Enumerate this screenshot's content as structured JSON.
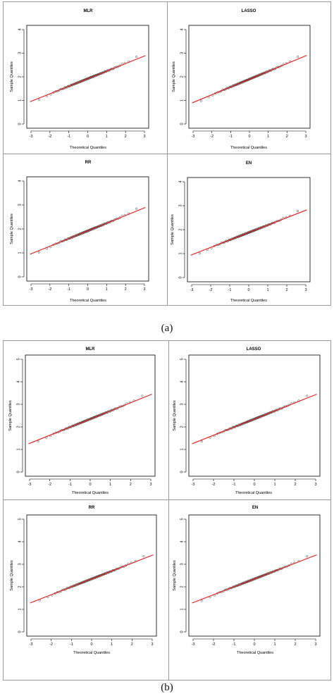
{
  "figure": {
    "label_a": "(a)",
    "label_b": "(b)"
  },
  "colors": {
    "reference_line": "#e41a1c",
    "points": "#333333",
    "axis": "#000000",
    "frame": "#9a9a9a"
  },
  "chart_data": [
    {
      "type": "scatter",
      "group": "a",
      "title": "MLR",
      "xlabel": "Theoretical Quantiles",
      "ylabel": "Sample Quantiles",
      "xlim": [
        -3,
        3
      ],
      "ylim": [
        0,
        4
      ],
      "xticks": [
        "-3",
        "-2",
        "-1",
        "0",
        "1",
        "2",
        "3"
      ],
      "yticks": [
        "0",
        "1",
        "2",
        "3",
        "4"
      ],
      "line": {
        "intercept": 1.92,
        "slope": 0.32,
        "color": "#e41a1c"
      },
      "points": {
        "count": 100,
        "min": 0.9,
        "max": 3.0
      }
    },
    {
      "type": "scatter",
      "group": "a",
      "title": "LASSO",
      "xlabel": "Theoretical Quantiles",
      "ylabel": "Sample Quantiles",
      "xlim": [
        -3,
        3
      ],
      "ylim": [
        0,
        4
      ],
      "xticks": [
        "-3",
        "-2",
        "-1",
        "0",
        "1",
        "2",
        "3"
      ],
      "yticks": [
        "0",
        "1",
        "2",
        "3",
        "4"
      ],
      "line": {
        "intercept": 1.9,
        "slope": 0.33,
        "color": "#e41a1c"
      },
      "points": {
        "count": 100,
        "min": 0.9,
        "max": 2.95
      }
    },
    {
      "type": "scatter",
      "group": "a",
      "title": "RR",
      "xlabel": "Theoretical Quantiles",
      "ylabel": "Sample Quantiles",
      "xlim": [
        -3,
        3
      ],
      "ylim": [
        0,
        4
      ],
      "xticks": [
        "-3",
        "-2",
        "-1",
        "0",
        "1",
        "2",
        "3"
      ],
      "yticks": [
        "0",
        "1",
        "2",
        "3",
        "4"
      ],
      "line": {
        "intercept": 1.92,
        "slope": 0.32,
        "color": "#e41a1c"
      },
      "points": {
        "count": 100,
        "min": 0.9,
        "max": 3.0
      }
    },
    {
      "type": "scatter",
      "group": "a",
      "title": "EN",
      "xlabel": "Theoretical Quantiles",
      "ylabel": "Sample Quantiles",
      "xlim": [
        -3,
        3
      ],
      "ylim": [
        0,
        4
      ],
      "xticks": [
        "-3",
        "-2",
        "-1",
        "0",
        "1",
        "2",
        "3"
      ],
      "yticks": [
        "0",
        "1",
        "2",
        "3",
        "4"
      ],
      "line": {
        "intercept": 1.88,
        "slope": 0.31,
        "color": "#e41a1c"
      },
      "points": {
        "count": 100,
        "min": 0.9,
        "max": 2.95
      }
    },
    {
      "type": "scatter",
      "group": "b",
      "title": "MLR",
      "xlabel": "Theoretical Quantiles",
      "ylabel": "Sample Quantiles",
      "xlim": [
        -3,
        3
      ],
      "ylim": [
        0,
        5
      ],
      "xticks": [
        "-3",
        "-2",
        "-1",
        "0",
        "1",
        "2",
        "3"
      ],
      "yticks": [
        "0",
        "1",
        "2",
        "3",
        "4",
        "5"
      ],
      "line": {
        "intercept": 2.35,
        "slope": 0.36,
        "color": "#e41a1c"
      },
      "points": {
        "count": 100,
        "min": 1.3,
        "max": 3.4
      }
    },
    {
      "type": "scatter",
      "group": "b",
      "title": "LASSO",
      "xlabel": "Theoretical Quantiles",
      "ylabel": "Sample Quantiles",
      "xlim": [
        -3,
        3
      ],
      "ylim": [
        0,
        5
      ],
      "xticks": [
        "-3",
        "-2",
        "-1",
        "0",
        "1",
        "2",
        "3"
      ],
      "yticks": [
        "0",
        "1",
        "2",
        "3",
        "4",
        "5"
      ],
      "line": {
        "intercept": 2.35,
        "slope": 0.36,
        "color": "#e41a1c"
      },
      "points": {
        "count": 100,
        "min": 1.35,
        "max": 3.4
      }
    },
    {
      "type": "scatter",
      "group": "b",
      "title": "RR",
      "xlabel": "Theoretical Quantiles",
      "ylabel": "Sample Quantiles",
      "xlim": [
        -3,
        3
      ],
      "ylim": [
        0,
        5
      ],
      "xticks": [
        "-3",
        "-2",
        "-1",
        "0",
        "1",
        "2",
        "3"
      ],
      "yticks": [
        "0",
        "1",
        "2",
        "3",
        "4",
        "5"
      ],
      "line": {
        "intercept": 2.35,
        "slope": 0.35,
        "color": "#e41a1c"
      },
      "points": {
        "count": 100,
        "min": 1.4,
        "max": 3.4
      }
    },
    {
      "type": "scatter",
      "group": "b",
      "title": "EN",
      "xlabel": "Theoretical Quantiles",
      "ylabel": "Sample Quantiles",
      "xlim": [
        -3,
        3
      ],
      "ylim": [
        0,
        5
      ],
      "xticks": [
        "-3",
        "-2",
        "-1",
        "0",
        "1",
        "2",
        "3"
      ],
      "yticks": [
        "0",
        "1",
        "2",
        "3",
        "4",
        "5"
      ],
      "line": {
        "intercept": 2.35,
        "slope": 0.35,
        "color": "#e41a1c"
      },
      "points": {
        "count": 100,
        "min": 1.35,
        "max": 3.4
      }
    }
  ]
}
